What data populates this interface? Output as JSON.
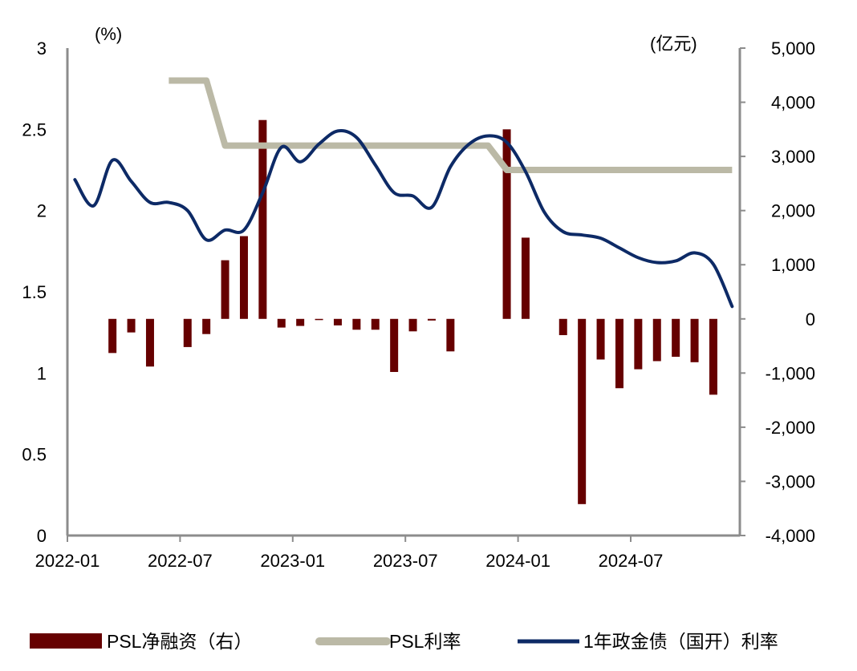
{
  "chart_data": {
    "type": "bar+line",
    "left_axis": {
      "unit_label": "(%)",
      "range": [
        0,
        3
      ],
      "ticks": [
        "0",
        "0.5",
        "1",
        "1.5",
        "2",
        "2.5",
        "3"
      ]
    },
    "right_axis": {
      "unit_label": "(亿元)",
      "range": [
        -4000,
        5000
      ],
      "ticks": [
        "-4,000",
        "-3,000",
        "-2,000",
        "-1,000",
        "0",
        "1,000",
        "2,000",
        "3,000",
        "4,000",
        "5,000"
      ]
    },
    "x_ticks": [
      "2022-01",
      "2022-07",
      "2023-01",
      "2023-07",
      "2024-01",
      "2024-07"
    ],
    "months": [
      "2022-01",
      "2022-02",
      "2022-03",
      "2022-04",
      "2022-05",
      "2022-06",
      "2022-07",
      "2022-08",
      "2022-09",
      "2022-10",
      "2022-11",
      "2022-12",
      "2023-01",
      "2023-02",
      "2023-03",
      "2023-04",
      "2023-05",
      "2023-06",
      "2023-07",
      "2023-08",
      "2023-09",
      "2023-10",
      "2023-11",
      "2023-12",
      "2024-01",
      "2024-02",
      "2024-03",
      "2024-04",
      "2024-05",
      "2024-06",
      "2024-07",
      "2024-08",
      "2024-09",
      "2024-10",
      "2024-11",
      "2024-12"
    ],
    "grid": false,
    "legend_placement": "bottom",
    "series": [
      {
        "name": "PSL净融资（右）",
        "type": "bar",
        "axis": "right",
        "color": "#660000",
        "values": [
          null,
          null,
          -630,
          -250,
          -880,
          null,
          -520,
          -280,
          1083,
          1528,
          3672,
          -160,
          -130,
          -20,
          -120,
          -200,
          -200,
          -980,
          -230,
          -30,
          -600,
          0,
          0,
          3500,
          1500,
          0,
          -300,
          -3420,
          -750,
          -1280,
          -930,
          -780,
          -700,
          -800,
          -1400,
          null
        ]
      },
      {
        "name": "PSL利率",
        "type": "line",
        "axis": "left",
        "color": "#BBB9A6",
        "values": [
          null,
          null,
          null,
          null,
          null,
          2.8,
          2.8,
          2.8,
          2.4,
          2.4,
          2.4,
          2.4,
          2.4,
          2.4,
          2.4,
          2.4,
          2.4,
          2.4,
          2.4,
          2.4,
          2.4,
          2.4,
          2.4,
          2.25,
          2.25,
          2.25,
          2.25,
          2.25,
          2.25,
          2.25,
          2.25,
          2.25,
          2.25,
          2.25,
          2.25,
          2.25
        ]
      },
      {
        "name": "1年政金债（国开）利率",
        "type": "line",
        "axis": "left",
        "color": "#0D2A66",
        "values": [
          2.19,
          2.03,
          2.31,
          2.18,
          2.05,
          2.05,
          2.0,
          1.82,
          1.88,
          1.88,
          2.11,
          2.39,
          2.3,
          2.41,
          2.49,
          2.45,
          2.28,
          2.11,
          2.09,
          2.02,
          2.27,
          2.41,
          2.46,
          2.42,
          2.24,
          1.99,
          1.87,
          1.85,
          1.83,
          1.77,
          1.71,
          1.68,
          1.69,
          1.74,
          1.67,
          1.41
        ]
      }
    ]
  }
}
